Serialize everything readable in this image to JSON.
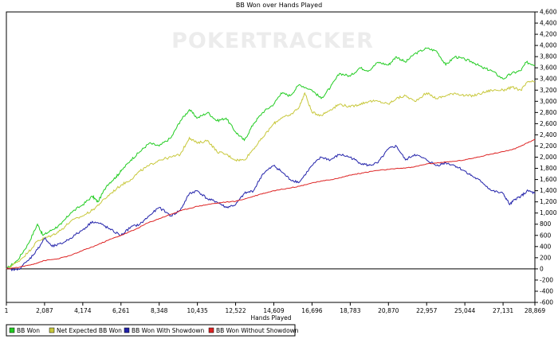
{
  "watermark": "POKERTRACKER",
  "chart_data": {
    "type": "line",
    "title": "BB Won over Hands Played",
    "xlabel": "Hands Played",
    "ylabel": "",
    "xlim": [
      1,
      28869
    ],
    "ylim": [
      -600,
      4600
    ],
    "x_ticks": [
      1,
      2087,
      4174,
      6261,
      8348,
      10435,
      12522,
      14609,
      16696,
      18783,
      20870,
      22957,
      25044,
      27131,
      28869
    ],
    "x_tick_labels": [
      "1",
      "2,087",
      "4,174",
      "6,261",
      "8,348",
      "10,435",
      "12,522",
      "14,609",
      "16,696",
      "18,783",
      "20,870",
      "22,957",
      "25,044",
      "27,131",
      "28,869"
    ],
    "y_ticks": [
      -600,
      -400,
      -200,
      0,
      200,
      400,
      600,
      800,
      1000,
      1200,
      1400,
      1600,
      1800,
      2000,
      2200,
      2400,
      2600,
      2800,
      3000,
      3200,
      3400,
      3600,
      3800,
      4000,
      4200,
      4400,
      4600
    ],
    "y_tick_labels": [
      "-600",
      "-400",
      "-200",
      "0",
      "200",
      "400",
      "600",
      "800",
      "1,000",
      "1,200",
      "1,400",
      "1,600",
      "1,800",
      "2,000",
      "2,200",
      "2,400",
      "2,600",
      "2,800",
      "3,000",
      "3,200",
      "3,400",
      "3,600",
      "3,800",
      "4,000",
      "4,200",
      "4,400",
      "4,600"
    ],
    "legend_position": "bottom-left",
    "grid": false,
    "series": [
      {
        "name": "BB Won",
        "color": "#22cc22",
        "x": [
          1,
          600,
          1200,
          1700,
          2000,
          2500,
          3000,
          3500,
          4174,
          4700,
          5000,
          5500,
          6000,
          6261,
          6800,
          7300,
          7800,
          8348,
          9000,
          9500,
          10000,
          10435,
          11000,
          11500,
          12000,
          12522,
          13000,
          13500,
          14000,
          14609,
          15000,
          15500,
          16000,
          16696,
          17200,
          17700,
          18200,
          18783,
          19300,
          19800,
          20300,
          20870,
          21300,
          21800,
          22300,
          22957,
          23500,
          24000,
          24500,
          25044,
          25500,
          26000,
          26500,
          27131,
          27600,
          28100,
          28400,
          28869
        ],
        "y": [
          0,
          150,
          450,
          800,
          600,
          700,
          800,
          1000,
          1150,
          1300,
          1200,
          1500,
          1650,
          1750,
          1950,
          2100,
          2250,
          2200,
          2350,
          2650,
          2850,
          2700,
          2800,
          2650,
          2700,
          2450,
          2300,
          2600,
          2800,
          2950,
          3150,
          3100,
          3300,
          3200,
          3050,
          3250,
          3500,
          3450,
          3600,
          3550,
          3700,
          3650,
          3800,
          3700,
          3850,
          3950,
          3900,
          3650,
          3800,
          3750,
          3700,
          3600,
          3550,
          3400,
          3500,
          3550,
          3700,
          3650
        ]
      },
      {
        "name": "Net Expected BB Won",
        "color": "#c8c83c",
        "x": [
          1,
          600,
          1200,
          1700,
          2087,
          2500,
          3000,
          3500,
          4174,
          4700,
          5200,
          5700,
          6261,
          6800,
          7300,
          7800,
          8348,
          9000,
          9500,
          10000,
          10435,
          11000,
          11500,
          12000,
          12522,
          13000,
          13500,
          14000,
          14609,
          15000,
          15500,
          16000,
          16300,
          16696,
          17200,
          17700,
          18200,
          18783,
          19300,
          19800,
          20300,
          20870,
          21300,
          21800,
          22300,
          22957,
          23500,
          24000,
          24500,
          25044,
          25500,
          26000,
          26500,
          27131,
          27600,
          28100,
          28500,
          28869
        ],
        "y": [
          0,
          120,
          300,
          500,
          550,
          600,
          700,
          850,
          950,
          1050,
          1200,
          1350,
          1500,
          1600,
          1750,
          1850,
          1950,
          2000,
          2050,
          2350,
          2250,
          2300,
          2100,
          2050,
          1950,
          1950,
          2150,
          2350,
          2600,
          2700,
          2750,
          2900,
          3150,
          2800,
          2750,
          2850,
          2950,
          2900,
          2950,
          3000,
          3000,
          2950,
          3050,
          3100,
          3000,
          3150,
          3050,
          3100,
          3150,
          3100,
          3100,
          3150,
          3200,
          3200,
          3250,
          3200,
          3350,
          3350
        ]
      },
      {
        "name": "BB Won With Showdown",
        "color": "#2222aa",
        "x": [
          1,
          600,
          1200,
          1700,
          2087,
          2500,
          3000,
          3500,
          4174,
          4700,
          5200,
          5700,
          6261,
          6800,
          7300,
          7800,
          8348,
          9000,
          9500,
          10000,
          10435,
          11000,
          11500,
          12000,
          12522,
          13000,
          13500,
          14000,
          14609,
          15000,
          15500,
          16000,
          16696,
          17200,
          17700,
          18200,
          18783,
          19300,
          19800,
          20300,
          20870,
          21300,
          21800,
          22300,
          22957,
          23500,
          24000,
          24500,
          25044,
          25500,
          26000,
          26500,
          27131,
          27500,
          27800,
          28100,
          28500,
          28869
        ],
        "y": [
          0,
          -20,
          150,
          350,
          550,
          400,
          450,
          550,
          700,
          850,
          800,
          700,
          600,
          750,
          800,
          950,
          1100,
          950,
          1050,
          1350,
          1400,
          1250,
          1200,
          1100,
          1150,
          1350,
          1400,
          1700,
          1850,
          1750,
          1600,
          1550,
          1850,
          2000,
          1950,
          2050,
          2000,
          1900,
          1850,
          1900,
          2150,
          2200,
          1950,
          2050,
          1950,
          1850,
          1900,
          1850,
          1750,
          1650,
          1550,
          1400,
          1350,
          1150,
          1250,
          1300,
          1400,
          1350
        ]
      },
      {
        "name": "BB Won Without Showdown",
        "color": "#dd2222",
        "x": [
          1,
          700,
          1400,
          2087,
          2800,
          3500,
          4174,
          4900,
          5600,
          6261,
          7000,
          7700,
          8348,
          9000,
          9700,
          10435,
          11100,
          11800,
          12522,
          13200,
          13900,
          14609,
          15300,
          16000,
          16696,
          17400,
          18100,
          18783,
          19500,
          20200,
          20870,
          21500,
          22200,
          22957,
          23600,
          24300,
          25044,
          25700,
          26400,
          27131,
          27800,
          28300,
          28869
        ],
        "y": [
          0,
          30,
          80,
          150,
          180,
          240,
          330,
          420,
          520,
          600,
          700,
          820,
          900,
          980,
          1060,
          1120,
          1160,
          1190,
          1210,
          1270,
          1340,
          1400,
          1440,
          1480,
          1540,
          1580,
          1620,
          1680,
          1720,
          1760,
          1780,
          1800,
          1820,
          1880,
          1900,
          1920,
          1950,
          2000,
          2050,
          2100,
          2150,
          2230,
          2320
        ]
      }
    ]
  }
}
